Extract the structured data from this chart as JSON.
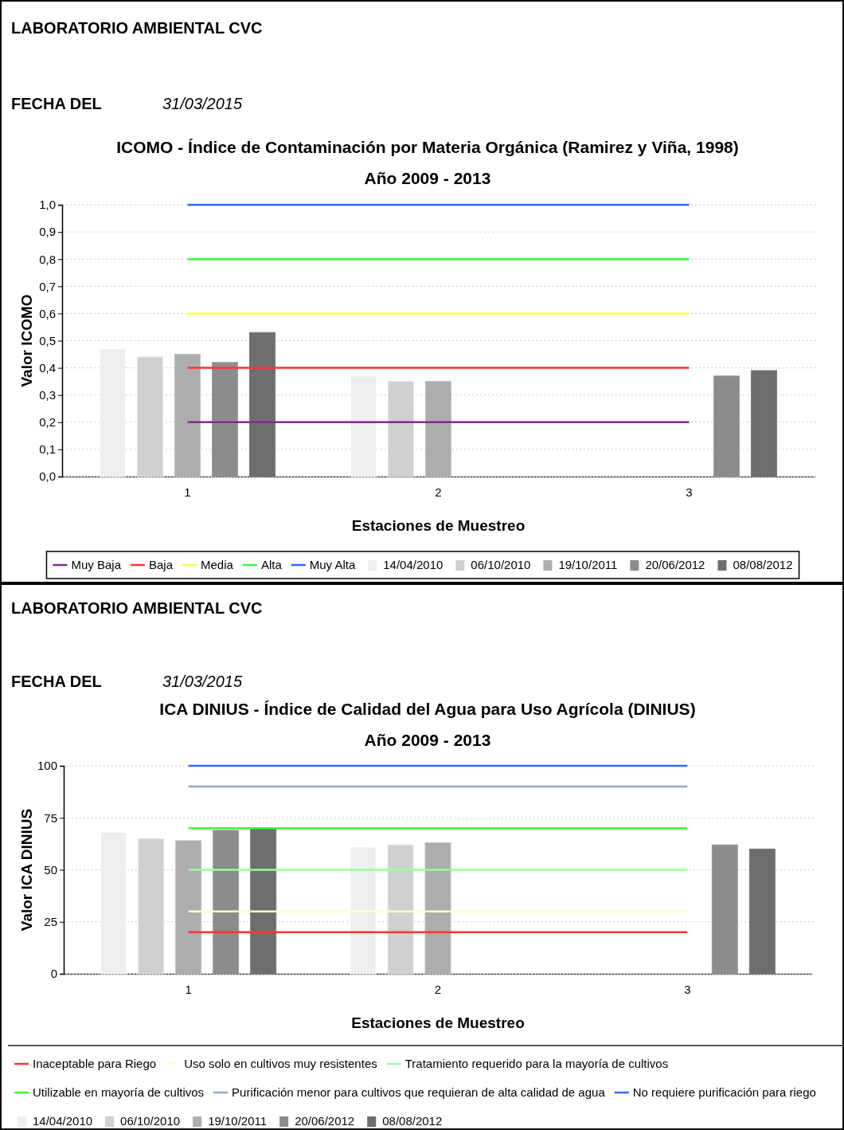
{
  "chart_data": [
    {
      "type": "bar",
      "title": "ICOMO - Índice de Contaminación por Materia Orgánica (Ramirez y Viña, 1998)",
      "subtitle": "Año 2009 - 2013",
      "xlabel": "Estaciones de Muestreo",
      "ylabel": "Valor ICOMO",
      "annotations": [
        "LABORATORIO AMBIENTAL CVC",
        "FECHA DEL",
        "31/03/2015"
      ],
      "categories": [
        "1",
        "2",
        "3"
      ],
      "series": [
        {
          "name": "Muy Baja",
          "type": "line",
          "color": "#7b2d8b",
          "values": [
            0.2,
            0.2,
            0.2
          ]
        },
        {
          "name": "Baja",
          "type": "line",
          "color": "#ff3333",
          "values": [
            0.4,
            0.4,
            0.4
          ]
        },
        {
          "name": "Media",
          "type": "line",
          "color": "#ffff33",
          "values": [
            0.6,
            0.6,
            0.6
          ]
        },
        {
          "name": "Alta",
          "type": "line",
          "color": "#33ff33",
          "values": [
            0.8,
            0.8,
            0.8
          ]
        },
        {
          "name": "Muy Alta",
          "type": "line",
          "color": "#3366ff",
          "values": [
            1.0,
            1.0,
            1.0
          ]
        },
        {
          "name": "14/04/2010",
          "color": "#eeeeee",
          "values": [
            0.47,
            0.37,
            null
          ]
        },
        {
          "name": "06/10/2010",
          "color": "#d0d0d0",
          "values": [
            0.44,
            0.35,
            null
          ]
        },
        {
          "name": "19/10/2011",
          "color": "#adadad",
          "values": [
            0.45,
            0.35,
            null
          ]
        },
        {
          "name": "20/06/2012",
          "color": "#8c8c8c",
          "values": [
            0.42,
            null,
            0.37
          ]
        },
        {
          "name": "08/08/2012",
          "color": "#6e6e6e",
          "values": [
            0.53,
            null,
            0.39
          ]
        }
      ],
      "ylim": [
        0,
        1.0
      ],
      "yticks": [
        {
          "value": 0,
          "label": "0,0"
        },
        {
          "value": 0.1,
          "label": "0,1"
        },
        {
          "value": 0.2,
          "label": "0,2"
        },
        {
          "value": 0.3,
          "label": "0,3"
        },
        {
          "value": 0.4,
          "label": "0,4"
        },
        {
          "value": 0.5,
          "label": "0,5"
        },
        {
          "value": 0.6,
          "label": "0,6"
        },
        {
          "value": 0.7,
          "label": "0,7"
        },
        {
          "value": 0.8,
          "label": "0,8"
        },
        {
          "value": 0.9,
          "label": "0,9"
        },
        {
          "value": 1.0,
          "label": "1,0"
        }
      ],
      "grid": "y",
      "legend": "bottom",
      "marker": "none"
    },
    {
      "type": "bar",
      "title": "ICA DINIUS - Índice de Calidad del Agua para Uso Agrícola (DINIUS)",
      "subtitle": "Año 2009 - 2013",
      "xlabel": "Estaciones de Muestreo",
      "ylabel": "Valor ICA DINIUS",
      "annotations": [
        "LABORATORIO AMBIENTAL CVC",
        "FECHA DEL",
        "31/03/2015"
      ],
      "categories": [
        "1",
        "2",
        "3"
      ],
      "series": [
        {
          "name": "Inaceptable para Riego",
          "type": "line",
          "color": "#ff3333",
          "values": [
            20,
            20,
            20
          ]
        },
        {
          "name": "Uso solo en cultivos muy resistentes",
          "type": "line",
          "color": "#ffffcc",
          "values": [
            30,
            30,
            30
          ]
        },
        {
          "name": "Tratamiento requerido para la mayoría de cultivos",
          "type": "line",
          "color": "#99ff99",
          "values": [
            50,
            50,
            50
          ]
        },
        {
          "name": "Utilizable en mayoría de cultivos",
          "type": "line",
          "color": "#33ff33",
          "values": [
            70,
            70,
            70
          ]
        },
        {
          "name": "Purificación menor para cultivos que requieran de alta calidad de agua",
          "type": "line",
          "color": "#88aacc",
          "values": [
            90,
            90,
            90
          ]
        },
        {
          "name": "No requiere purificación para riego",
          "type": "line",
          "color": "#3366ff",
          "values": [
            100,
            100,
            100
          ]
        },
        {
          "name": "14/04/2010",
          "color": "#eeeeee",
          "values": [
            68,
            61,
            null
          ]
        },
        {
          "name": "06/10/2010",
          "color": "#d0d0d0",
          "values": [
            65,
            62,
            null
          ]
        },
        {
          "name": "19/10/2011",
          "color": "#adadad",
          "values": [
            64,
            63,
            null
          ]
        },
        {
          "name": "20/06/2012",
          "color": "#8c8c8c",
          "values": [
            69,
            null,
            62
          ]
        },
        {
          "name": "08/08/2012",
          "color": "#6e6e6e",
          "values": [
            70,
            null,
            60
          ]
        }
      ],
      "ylim": [
        0,
        100
      ],
      "yticks": [
        0,
        25,
        50,
        75,
        100
      ],
      "grid": "y",
      "legend": "bottom",
      "marker": "none"
    }
  ]
}
